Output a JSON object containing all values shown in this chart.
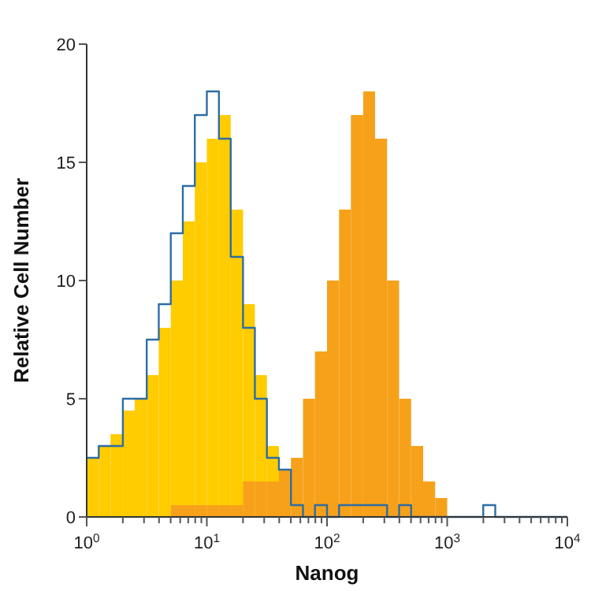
{
  "chart_data": {
    "type": "histogram",
    "xlabel": "Nanog",
    "ylabel": "Relative Cell Number",
    "log": "x",
    "bins": [
      1,
      1.26,
      1.58,
      2,
      2.51,
      3.16,
      3.98,
      5.01,
      6.31,
      7.94,
      10,
      12.6,
      15.8,
      20,
      25.1,
      31.6,
      39.8,
      50.1,
      63.1,
      79.4,
      100,
      126,
      158,
      200,
      251,
      316,
      398,
      501,
      631,
      794,
      1000,
      1259,
      1585,
      1995,
      2512,
      3162,
      3981,
      5012,
      6310,
      7943,
      10000
    ],
    "series": [
      {
        "color": "#ffcc00",
        "values": [
          2.5,
          3,
          3.5,
          4.5,
          5,
          6,
          8,
          10,
          12.5,
          15,
          16,
          17,
          13,
          9,
          6,
          3,
          null,
          null,
          null,
          0,
          0,
          0,
          0,
          0,
          0,
          0,
          0,
          0,
          0,
          0,
          0,
          0,
          0,
          0,
          0,
          0,
          0,
          0,
          0,
          0
        ]
      },
      {
        "color": "#f7a11a",
        "values": [
          0,
          0,
          0,
          0,
          0,
          0,
          0,
          0.5,
          0.5,
          0.5,
          0.5,
          0.5,
          0.5,
          1.5,
          1.5,
          1.5,
          2,
          2.5,
          5,
          7,
          10,
          13,
          17,
          18,
          16,
          10,
          5,
          3,
          1.5,
          0.8,
          0,
          0,
          0,
          0,
          0,
          0,
          0,
          0,
          0,
          0
        ]
      },
      {
        "type": "step",
        "color": "#2e6da4",
        "x": [
          1,
          1.26,
          1.58,
          2,
          2.51,
          3.16,
          3.98,
          5.01,
          6.31,
          7.94,
          10,
          12.6,
          15.8,
          20,
          25.1,
          31.6,
          39.8,
          50.1,
          63.1,
          79.4,
          100,
          126,
          158,
          200,
          251,
          316,
          398,
          501,
          631,
          794,
          1000,
          1259,
          1585,
          1995,
          2512,
          3162,
          3981,
          5012,
          6310,
          7943,
          10000
        ],
        "values": [
          2.5,
          3,
          3,
          5,
          5,
          7.5,
          9,
          12,
          14,
          17,
          18,
          16,
          11,
          8,
          5,
          2.5,
          2,
          0.5,
          0,
          0.5,
          0,
          0.5,
          0.5,
          0.5,
          0.5,
          0,
          0.5,
          0,
          0,
          0,
          0,
          0,
          0,
          0.5,
          0,
          0,
          0,
          0,
          0,
          0,
          0
        ]
      }
    ],
    "xlim": [
      1,
      10000
    ],
    "ylim": [
      0,
      20
    ],
    "yticks": [
      0,
      5,
      10,
      15,
      20
    ],
    "xticks": [
      {
        "value": 1,
        "label": "10$^{0}$"
      },
      {
        "value": 2,
        "label": null
      },
      {
        "value": 3,
        "label": null
      },
      {
        "value": 4,
        "label": null
      },
      {
        "value": 5,
        "label": null
      },
      {
        "value": 6,
        "label": null
      },
      {
        "value": 7,
        "label": null
      },
      {
        "value": 8,
        "label": null
      },
      {
        "value": 9,
        "label": null
      },
      {
        "value": 10,
        "label": "10$^{1}$"
      },
      {
        "value": 20,
        "label": null
      },
      {
        "value": 30,
        "label": null
      },
      {
        "value": 40,
        "label": null
      },
      {
        "value": 50,
        "label": null
      },
      {
        "value": 60,
        "label": null
      },
      {
        "value": 70,
        "label": null
      },
      {
        "value": 80,
        "label": null
      },
      {
        "value": 90,
        "label": null
      },
      {
        "value": 100,
        "label": "10$^{2}$"
      },
      {
        "value": 200,
        "label": null
      },
      {
        "value": 300,
        "label": null
      },
      {
        "value": 400,
        "label": null
      },
      {
        "value": 500,
        "label": null
      },
      {
        "value": 600,
        "label": null
      },
      {
        "value": 700,
        "label": null
      },
      {
        "value": 800,
        "label": null
      },
      {
        "value": 900,
        "label": null
      },
      {
        "value": 1000,
        "label": "10$^{3}$"
      },
      {
        "value": 2000,
        "label": null
      },
      {
        "value": 3000,
        "label": null
      },
      {
        "value": 4000,
        "label": null
      },
      {
        "value": 5000,
        "label": null
      },
      {
        "value": 6000,
        "label": null
      },
      {
        "value": 7000,
        "label": null
      },
      {
        "value": 8000,
        "label": null
      },
      {
        "value": 9000,
        "label": null
      },
      {
        "value": 10000,
        "label": "10$^{4}$"
      }
    ],
    "grid": false
  }
}
